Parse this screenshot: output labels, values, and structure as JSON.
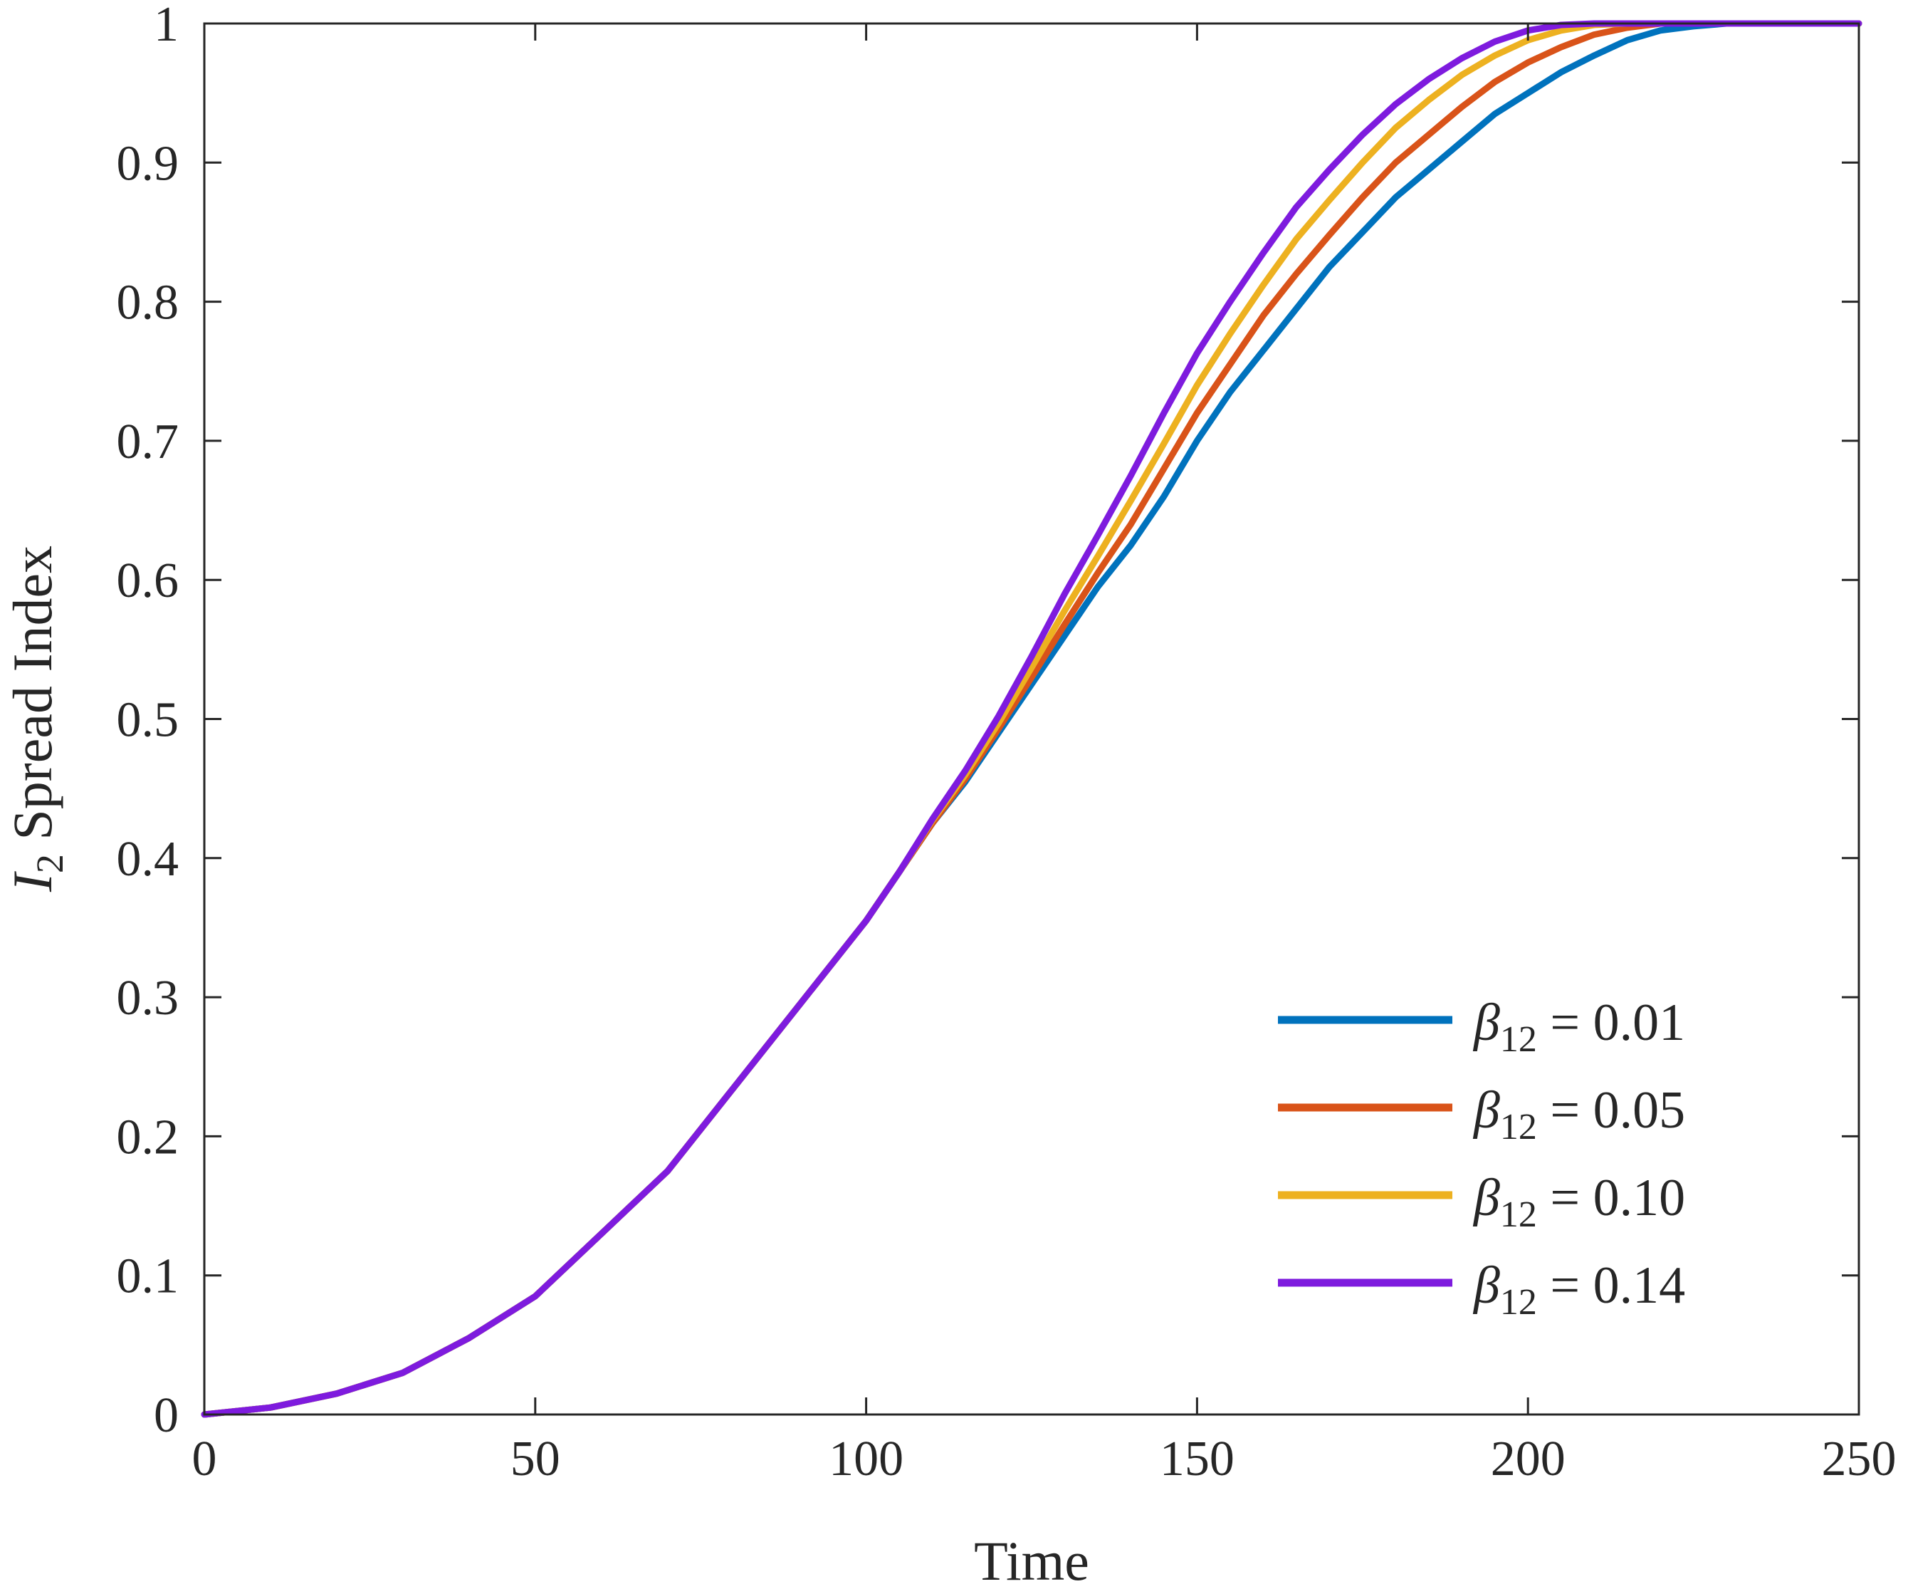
{
  "chart_data": {
    "type": "line",
    "xlabel": "Time",
    "ylabel_main": "I",
    "ylabel_sub": "2",
    "ylabel_rest": " Spread Index",
    "xlim": [
      0,
      250
    ],
    "ylim": [
      0,
      1
    ],
    "xticks": [
      0,
      50,
      100,
      150,
      200,
      250
    ],
    "xtick_labels": [
      "0",
      "50",
      "100",
      "150",
      "200",
      "250"
    ],
    "yticks": [
      0,
      0.1,
      0.2,
      0.3,
      0.4,
      0.5,
      0.6,
      0.7,
      0.8,
      0.9,
      1
    ],
    "ytick_labels": [
      "0",
      "0.1",
      "0.2",
      "0.3",
      "0.4",
      "0.5",
      "0.6",
      "0.7",
      "0.8",
      "0.9",
      "1"
    ],
    "grid": false,
    "legend_position": "bottom-right",
    "shared_x": [
      0,
      10,
      20,
      30,
      40,
      50,
      60,
      70,
      80,
      90,
      100,
      105
    ],
    "shared_y": [
      0.0,
      0.005,
      0.015,
      0.03,
      0.055,
      0.085,
      0.13,
      0.175,
      0.235,
      0.295,
      0.355,
      0.39
    ],
    "series": [
      {
        "name": "β12 = 0.01",
        "name_greek": "β",
        "name_sub": "12",
        "name_value": " = 0.01",
        "color": "#0072BD",
        "x": [
          110,
          115,
          120,
          125,
          130,
          135,
          140,
          145,
          150,
          155,
          160,
          165,
          170,
          175,
          180,
          185,
          190,
          195,
          200,
          205,
          210,
          215,
          220,
          225,
          230,
          235
        ],
        "y": [
          0.425,
          0.455,
          0.49,
          0.525,
          0.56,
          0.595,
          0.625,
          0.66,
          0.7,
          0.735,
          0.765,
          0.795,
          0.825,
          0.85,
          0.875,
          0.895,
          0.915,
          0.935,
          0.95,
          0.965,
          0.977,
          0.988,
          0.995,
          0.998,
          1.0,
          1.0
        ]
      },
      {
        "name": "β12 = 0.05",
        "name_greek": "β",
        "name_sub": "12",
        "name_value": " = 0.05",
        "color": "#D95319",
        "x": [
          110,
          115,
          120,
          125,
          130,
          135,
          140,
          145,
          150,
          155,
          160,
          165,
          170,
          175,
          180,
          185,
          190,
          195,
          200,
          205,
          210,
          215,
          220,
          225
        ],
        "y": [
          0.425,
          0.457,
          0.493,
          0.53,
          0.568,
          0.605,
          0.64,
          0.68,
          0.72,
          0.755,
          0.79,
          0.82,
          0.848,
          0.875,
          0.9,
          0.92,
          0.94,
          0.958,
          0.972,
          0.983,
          0.992,
          0.997,
          1.0,
          1.0
        ]
      },
      {
        "name": "β12 = 0.10",
        "name_greek": "β",
        "name_sub": "12",
        "name_value": " = 0.10",
        "color": "#EDB120",
        "x": [
          110,
          115,
          120,
          125,
          130,
          135,
          140,
          145,
          150,
          155,
          160,
          165,
          170,
          175,
          180,
          185,
          190,
          195,
          200,
          205,
          210,
          215
        ],
        "y": [
          0.427,
          0.46,
          0.497,
          0.537,
          0.578,
          0.617,
          0.657,
          0.698,
          0.74,
          0.777,
          0.812,
          0.845,
          0.873,
          0.9,
          0.925,
          0.945,
          0.963,
          0.977,
          0.988,
          0.995,
          0.999,
          1.0
        ]
      },
      {
        "name": "β12 = 0.14",
        "name_greek": "β",
        "name_sub": "12",
        "name_value": " = 0.14",
        "color": "#7E1BDE",
        "x": [
          110,
          115,
          120,
          125,
          130,
          135,
          140,
          145,
          150,
          155,
          160,
          165,
          170,
          175,
          180,
          185,
          190,
          195,
          200,
          205,
          210
        ],
        "y": [
          0.428,
          0.463,
          0.502,
          0.545,
          0.59,
          0.632,
          0.675,
          0.72,
          0.763,
          0.8,
          0.835,
          0.868,
          0.895,
          0.92,
          0.942,
          0.96,
          0.975,
          0.987,
          0.995,
          0.999,
          1.0
        ]
      }
    ]
  }
}
